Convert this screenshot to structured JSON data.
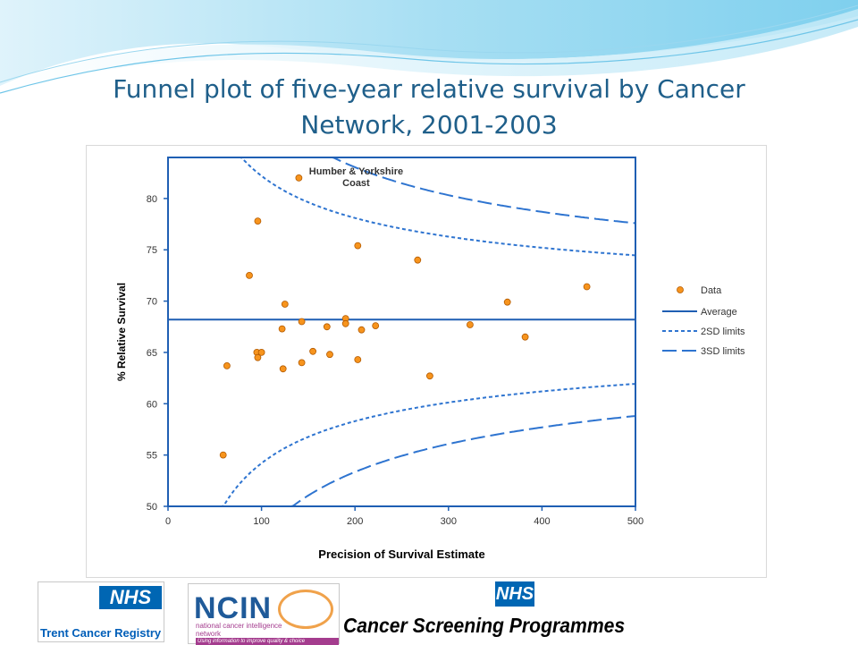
{
  "slide": {
    "title": "Funnel plot of five-year relative survival by Cancer Network, 2001-2003"
  },
  "chart_data": {
    "type": "scatter",
    "xlabel": "Precision of Survival Estimate",
    "ylabel": "% Relative Survival",
    "xlim": [
      0,
      500
    ],
    "ylim": [
      50,
      84
    ],
    "x_ticks": [
      0,
      100,
      200,
      300,
      400,
      500
    ],
    "y_ticks": [
      50,
      55,
      60,
      65,
      70,
      75,
      80
    ],
    "grid": false,
    "legend_position": "right",
    "legend": [
      "Data",
      "Average",
      "2SD limits",
      "3SD limits"
    ],
    "annotation": {
      "text_line1": "Humber & Yorkshire",
      "text_line2": "Coast",
      "x": 140,
      "y": 82.0
    },
    "average": 68.2,
    "series": [
      {
        "name": "Data",
        "color": "#f7941d",
        "points": [
          {
            "x": 140,
            "y": 82.0
          },
          {
            "x": 96,
            "y": 77.8
          },
          {
            "x": 203,
            "y": 75.4
          },
          {
            "x": 267,
            "y": 74.0
          },
          {
            "x": 87,
            "y": 72.5
          },
          {
            "x": 125,
            "y": 69.7
          },
          {
            "x": 122,
            "y": 67.3
          },
          {
            "x": 143,
            "y": 68.0
          },
          {
            "x": 190,
            "y": 68.3
          },
          {
            "x": 190,
            "y": 67.8
          },
          {
            "x": 170,
            "y": 67.5
          },
          {
            "x": 207,
            "y": 67.2
          },
          {
            "x": 222,
            "y": 67.6
          },
          {
            "x": 95,
            "y": 65.0
          },
          {
            "x": 100,
            "y": 65.0
          },
          {
            "x": 96,
            "y": 64.5
          },
          {
            "x": 63,
            "y": 63.7
          },
          {
            "x": 123,
            "y": 63.4
          },
          {
            "x": 143,
            "y": 64.0
          },
          {
            "x": 155,
            "y": 65.1
          },
          {
            "x": 173,
            "y": 64.8
          },
          {
            "x": 203,
            "y": 64.3
          },
          {
            "x": 280,
            "y": 62.7
          },
          {
            "x": 323,
            "y": 67.7
          },
          {
            "x": 363,
            "y": 69.9
          },
          {
            "x": 382,
            "y": 66.5
          },
          {
            "x": 448,
            "y": 71.4
          },
          {
            "x": 59,
            "y": 55.0
          }
        ]
      },
      {
        "name": "Average",
        "color": "#1f5fb3"
      },
      {
        "name": "2SD limits",
        "color": "#2e74d0"
      },
      {
        "name": "3SD limits",
        "color": "#2e74d0"
      }
    ]
  },
  "logos": {
    "trent_nhs": "NHS",
    "trent_name": "Trent Cancer Registry",
    "ncin_name": "NCIN",
    "ncin_sub": "national cancer intelligence network",
    "ncin_tag": "Using information to improve quality & choice",
    "csp_nhs": "NHS",
    "csp_name": "Cancer Screening Programmes"
  }
}
